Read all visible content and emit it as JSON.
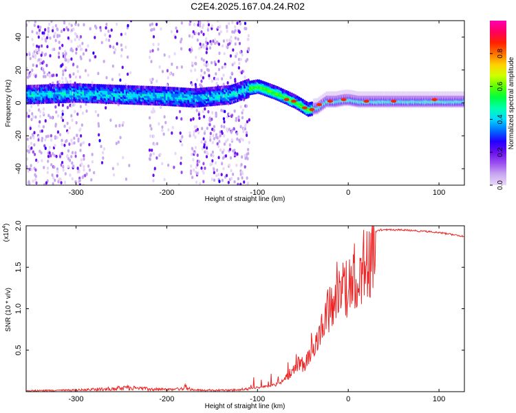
{
  "title": "C2E4.2025.167.04.24.R02",
  "chart_data": [
    {
      "type": "heatmap",
      "xlabel": "Height of straight line (km)",
      "ylabel": "Frequency (Hz)",
      "xlim": [
        -355,
        128
      ],
      "ylim": [
        -50,
        50
      ],
      "x_ticks": [
        -300,
        -200,
        -100,
        0,
        100
      ],
      "y_ticks": [
        -40,
        -20,
        0,
        20,
        40
      ],
      "colorbar": {
        "label": "Normalized spectral amplitude",
        "range": [
          0,
          1
        ],
        "ticks": [
          0.0,
          0.2,
          0.4,
          0.6,
          0.8
        ],
        "colormap": [
          "#e8d8f8",
          "#c8a8f0",
          "#9a4ef0",
          "#6a10f0",
          "#2000ff",
          "#0070ff",
          "#00d8ff",
          "#00ffb0",
          "#00ff40",
          "#60ff00",
          "#d0ff00",
          "#ffd000",
          "#ff7000",
          "#ff2000",
          "#ff0060",
          "#ff00b0"
        ]
      },
      "centerline": [
        [
          -355,
          5
        ],
        [
          -300,
          6
        ],
        [
          -250,
          5
        ],
        [
          -200,
          4
        ],
        [
          -170,
          3
        ],
        [
          -130,
          5
        ],
        [
          -110,
          9
        ],
        [
          -100,
          10
        ],
        [
          -80,
          6
        ],
        [
          -60,
          1
        ],
        [
          -45,
          -4
        ],
        [
          -35,
          -3
        ],
        [
          -25,
          1
        ],
        [
          -15,
          1
        ],
        [
          -5,
          2
        ],
        [
          0,
          2
        ],
        [
          10,
          1
        ],
        [
          40,
          1
        ],
        [
          80,
          1
        ],
        [
          100,
          1
        ],
        [
          128,
          1
        ]
      ],
      "hotspots": [
        [
          -68,
          2
        ],
        [
          -60,
          1
        ],
        [
          -48,
          -3
        ],
        [
          -40,
          -4
        ],
        [
          -32,
          -1
        ],
        [
          -20,
          1
        ],
        [
          -5,
          2
        ],
        [
          20,
          1
        ],
        [
          50,
          1
        ],
        [
          95,
          2
        ]
      ]
    },
    {
      "type": "line",
      "xlabel": "Height of straight line (km)",
      "ylabel": "SNR (10 * v/v)",
      "y_multiplier": "(x10",
      "y_multiplier_exp": "4",
      "y_multiplier_close": ")",
      "xlim": [
        -355,
        128
      ],
      "ylim": [
        0,
        2.0
      ],
      "x_ticks": [
        -300,
        -200,
        -100,
        0,
        100
      ],
      "y_ticks": [
        0.5,
        1.0,
        1.5,
        2.0
      ],
      "y_tick_labels": [
        "0.5",
        "1.0",
        "1.5",
        "2.0"
      ],
      "color": "#ee2222",
      "envelope": [
        [
          -355,
          0.02
        ],
        [
          -300,
          0.03
        ],
        [
          -260,
          0.06
        ],
        [
          -240,
          0.08
        ],
        [
          -220,
          0.05
        ],
        [
          -190,
          0.04
        ],
        [
          -180,
          0.09
        ],
        [
          -170,
          0.03
        ],
        [
          -130,
          0.03
        ],
        [
          -110,
          0.05
        ],
        [
          -95,
          0.07
        ],
        [
          -80,
          0.12
        ],
        [
          -70,
          0.2
        ],
        [
          -62,
          0.3
        ],
        [
          -55,
          0.45
        ],
        [
          -48,
          0.4
        ],
        [
          -42,
          0.55
        ],
        [
          -36,
          0.85
        ],
        [
          -30,
          0.95
        ],
        [
          -24,
          1.2
        ],
        [
          -18,
          1.3
        ],
        [
          -12,
          1.5
        ],
        [
          -6,
          1.6
        ],
        [
          0,
          1.62
        ],
        [
          8,
          1.72
        ],
        [
          16,
          1.82
        ],
        [
          25,
          1.92
        ],
        [
          35,
          1.96
        ],
        [
          60,
          1.96
        ],
        [
          100,
          1.93
        ],
        [
          128,
          1.88
        ]
      ]
    }
  ]
}
